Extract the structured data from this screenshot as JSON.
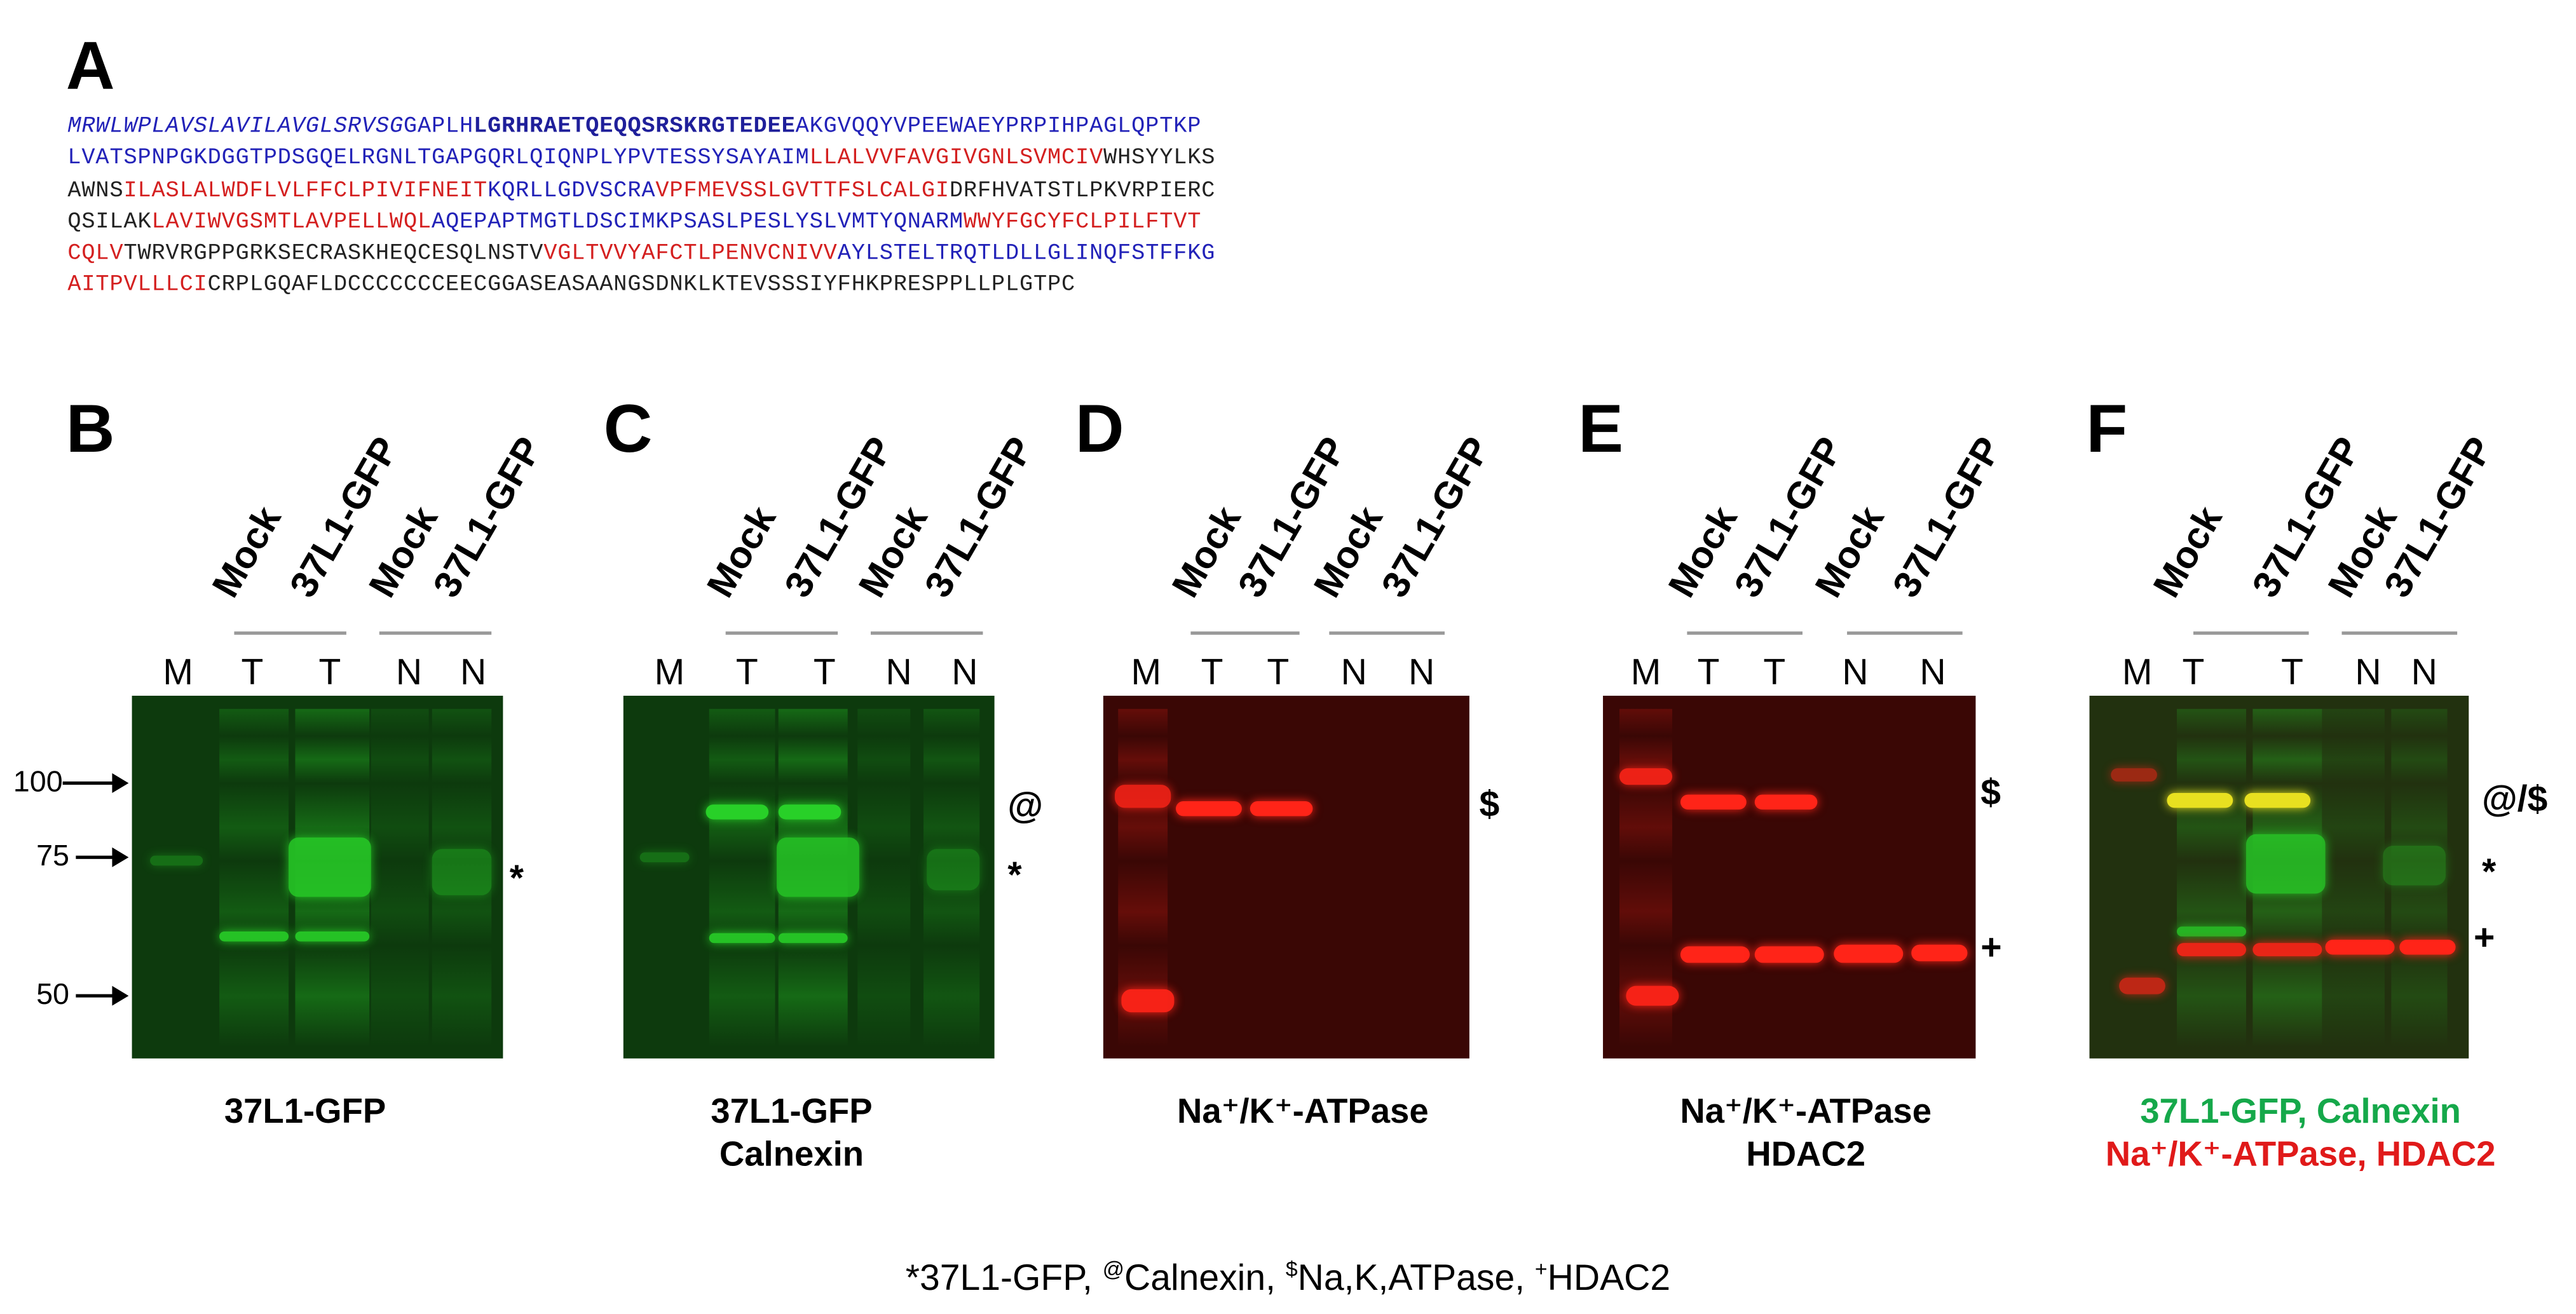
{
  "figure": {
    "panel_letters": [
      "A",
      "B",
      "C",
      "D",
      "E",
      "F"
    ],
    "sequence_lines": [
      [
        [
          "MRWLWPLAVSLAVILAVGLSRVSG",
          "bi"
        ],
        [
          "GAPLH",
          "b"
        ],
        [
          "LGRHRAETQEQQSRSKRGTEDEE",
          "bb"
        ],
        [
          "AKGVQQYVPEEWAEYPRPIHPAGLQPTKP",
          "b"
        ]
      ],
      [
        [
          "LVATSPNPGKDGGTPDSGQELRGNLTGAP",
          "b"
        ],
        [
          "GQRLQIQNPLYPVTESSYSAYAIM",
          "b"
        ],
        [
          "LLALVVF",
          "r"
        ],
        [
          "AVGIVGNLSVMCIV",
          "r"
        ],
        [
          "WHSYYLKS",
          "k"
        ]
      ],
      [
        [
          "AWNS",
          "k"
        ],
        [
          "ILASLALWDFLVLFFCLPIVIFNEIT",
          "r"
        ],
        [
          "KQRLLGDVSCRA",
          "b"
        ],
        [
          "VPFMEVSSLGVTTFSLCALGI",
          "r"
        ],
        [
          "DRFHVATSTLPKVRPIERC",
          "k"
        ]
      ],
      [
        [
          "QSILAK",
          "k"
        ],
        [
          "LAVIWVGSMTLAVPELLWQL",
          "r"
        ],
        [
          "AQEPAPTMGTLDSCIMKPSASLPESLYSLVMTYQNARM",
          "b"
        ],
        [
          "WWYFGCYFCLPILFTVT",
          "r"
        ]
      ],
      [
        [
          "CQLV",
          "r"
        ],
        [
          "TWRVRGPPGRKSECRASKHEQCESQLNSTV",
          "k"
        ],
        [
          "VGLTVVYAFCTLPENVCNIVV",
          "r"
        ],
        [
          "AYLSTELTRQTLDLLGLINQFSTFFKG",
          "b"
        ]
      ],
      [
        [
          "AITPVLLLCI",
          "r"
        ],
        [
          "CRPLGQAFLDCCCCCCCEECGGASEASAANGSDNKLKTEVSSSIYFHKPRESPPLLPLGTPC",
          "k"
        ]
      ]
    ],
    "lane_groups": {
      "mock": "Mock",
      "construct": "37L1-GFP"
    },
    "lane_codes": [
      "M",
      "T",
      "T",
      "N",
      "N"
    ],
    "mw_markers": [
      "100",
      "75",
      "50"
    ],
    "band_markers": {
      "B": [
        "*"
      ],
      "C": [
        "@",
        "*"
      ],
      "D": [
        "$"
      ],
      "E": [
        "$",
        "+"
      ],
      "F": [
        "@/$",
        "*",
        "+"
      ]
    },
    "captions": {
      "B": [
        "37L1-GFP"
      ],
      "C": [
        "37L1-GFP",
        "Calnexin"
      ],
      "D": [
        "Na⁺/K⁺-ATPase"
      ],
      "E": [
        "Na⁺/K⁺-ATPase",
        "HDAC2"
      ],
      "F_green": "37L1-GFP, Calnexin",
      "F_red": "Na⁺/K⁺-ATPase, HDAC2"
    },
    "footer": {
      "s1": "*",
      "t1": "37L1-GFP, ",
      "s2": "@",
      "t2": "Calnexin, ",
      "s3": "$",
      "t3": "Na,K,ATPase, ",
      "s4": "+",
      "t4": "HDAC2"
    },
    "colors": {
      "green_channel": "#28d028",
      "red_channel": "#ff2418",
      "caption_green": "#15a84a",
      "caption_red": "#e01a1a",
      "seq_blue": "#2222b8",
      "seq_red": "#d42020"
    }
  }
}
